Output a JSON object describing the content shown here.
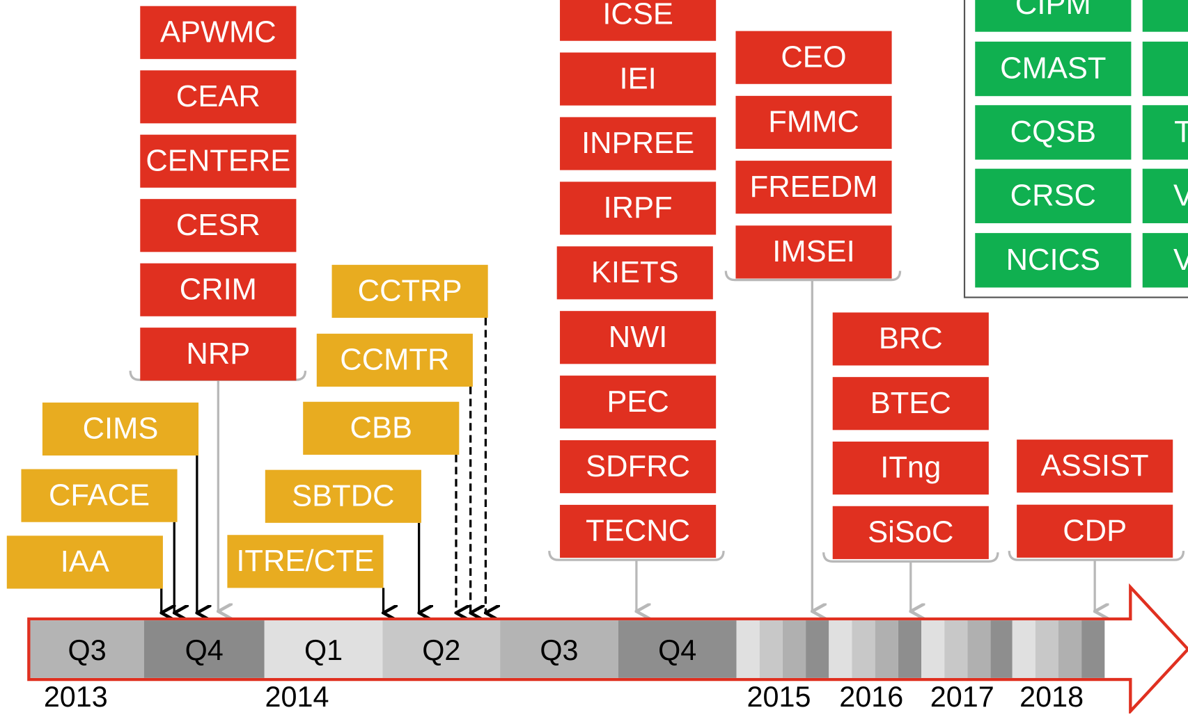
{
  "red_groups": [
    [
      "APWMC",
      "CEAR",
      "CENTERE",
      "CESR",
      "CRIM",
      "NRP"
    ],
    [
      "ICSE",
      "IEI",
      "INPREE",
      "IRPF",
      "KIETS",
      "NWI",
      "PEC",
      "SDFRC",
      "TECNC"
    ],
    [
      "CEO",
      "FMMC",
      "FREEDM",
      "IMSEI"
    ],
    [
      "BRC",
      "BTEC",
      "ITng",
      "SiSoC"
    ],
    [
      "ASSIST",
      "CDP"
    ]
  ],
  "yellow": [
    "CIMS",
    "CFACE",
    "IAA",
    "CCTRP",
    "CCMTR",
    "CBB",
    "SBTDC",
    "ITRE/CTE"
  ],
  "green": {
    "column1": [
      "CIPM",
      "CMAST",
      "CQSB",
      "CRSC",
      "NCICS"
    ],
    "column2": [
      "T",
      "V",
      "V"
    ]
  },
  "quarters": [
    "Q3",
    "Q4",
    "Q1",
    "Q2",
    "Q3",
    "Q4"
  ],
  "years": [
    "2013",
    "2014",
    "2015",
    "2016",
    "2017",
    "2018"
  ]
}
